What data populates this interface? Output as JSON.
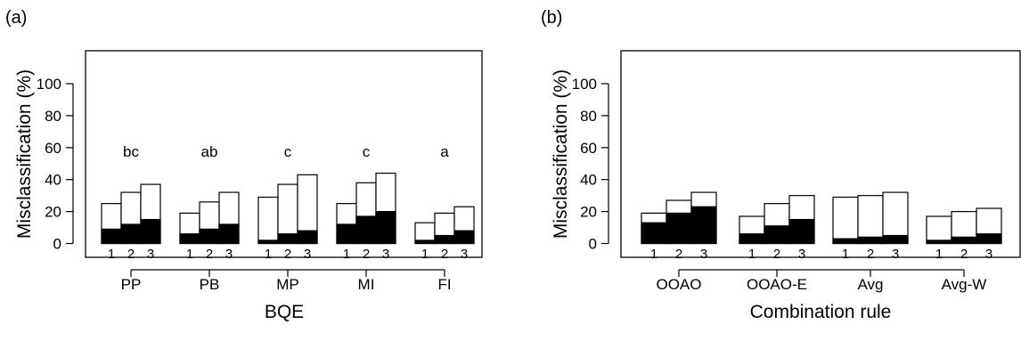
{
  "chart_data": [
    {
      "type": "bar",
      "panel_label": "(a)",
      "xlabel": "BQE",
      "ylabel": "Misclassification (%)",
      "ylim": [
        -10,
        120
      ],
      "yticks": [
        "0",
        "20",
        "40",
        "60",
        "80",
        "100"
      ],
      "sub_labels": [
        "1",
        "2",
        "3"
      ],
      "categories": [
        {
          "label": "PP",
          "letter": "bc",
          "groups": [
            {
              "sub": "1",
              "total": 25,
              "black": 9
            },
            {
              "sub": "2",
              "total": 32,
              "black": 12
            },
            {
              "sub": "3",
              "total": 37,
              "black": 15
            }
          ]
        },
        {
          "label": "PB",
          "letter": "ab",
          "groups": [
            {
              "sub": "1",
              "total": 19,
              "black": 6
            },
            {
              "sub": "2",
              "total": 26,
              "black": 9
            },
            {
              "sub": "3",
              "total": 32,
              "black": 12
            }
          ]
        },
        {
          "label": "MP",
          "letter": "c",
          "groups": [
            {
              "sub": "1",
              "total": 29,
              "black": 2
            },
            {
              "sub": "2",
              "total": 37,
              "black": 6
            },
            {
              "sub": "3",
              "total": 43,
              "black": 8
            }
          ]
        },
        {
          "label": "MI",
          "letter": "c",
          "groups": [
            {
              "sub": "1",
              "total": 25,
              "black": 12
            },
            {
              "sub": "2",
              "total": 38,
              "black": 17
            },
            {
              "sub": "3",
              "total": 44,
              "black": 20
            }
          ]
        },
        {
          "label": "FI",
          "letter": "a",
          "groups": [
            {
              "sub": "1",
              "total": 13,
              "black": 2
            },
            {
              "sub": "2",
              "total": 19,
              "black": 5
            },
            {
              "sub": "3",
              "total": 23,
              "black": 8
            }
          ]
        }
      ]
    },
    {
      "type": "bar",
      "panel_label": "(b)",
      "xlabel": "Combination rule",
      "ylabel": "Misclassification (%)",
      "ylim": [
        -10,
        120
      ],
      "yticks": [
        "0",
        "20",
        "40",
        "60",
        "80",
        "100"
      ],
      "sub_labels": [
        "1",
        "2",
        "3"
      ],
      "categories": [
        {
          "label": "OOAO",
          "letter": "",
          "groups": [
            {
              "sub": "1",
              "total": 19,
              "black": 13
            },
            {
              "sub": "2",
              "total": 27,
              "black": 19
            },
            {
              "sub": "3",
              "total": 32,
              "black": 23
            }
          ]
        },
        {
          "label": "OOAO-E",
          "letter": "",
          "groups": [
            {
              "sub": "1",
              "total": 17,
              "black": 6
            },
            {
              "sub": "2",
              "total": 25,
              "black": 11
            },
            {
              "sub": "3",
              "total": 30,
              "black": 15
            }
          ]
        },
        {
          "label": "Avg",
          "letter": "",
          "groups": [
            {
              "sub": "1",
              "total": 29,
              "black": 3
            },
            {
              "sub": "2",
              "total": 30,
              "black": 4
            },
            {
              "sub": "3",
              "total": 32,
              "black": 5
            }
          ]
        },
        {
          "label": "Avg-W",
          "letter": "",
          "groups": [
            {
              "sub": "1",
              "total": 17,
              "black": 2
            },
            {
              "sub": "2",
              "total": 20,
              "black": 4
            },
            {
              "sub": "3",
              "total": 22,
              "black": 6
            }
          ]
        }
      ]
    }
  ]
}
